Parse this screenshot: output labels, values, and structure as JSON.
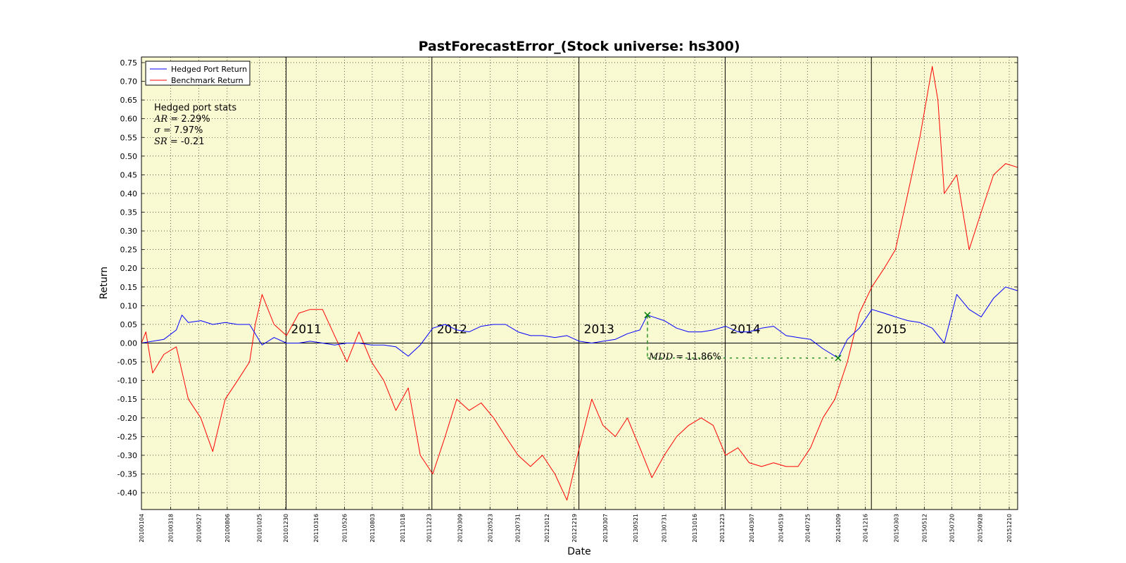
{
  "chart_data": {
    "type": "line",
    "title": "PastForecastError_(Stock universe: hs300)",
    "xlabel": "Date",
    "ylabel": "Return",
    "ylim": [
      -0.445,
      0.765
    ],
    "yticks": [
      "0.75",
      "0.70",
      "0.65",
      "0.60",
      "0.55",
      "0.50",
      "0.45",
      "0.40",
      "0.35",
      "0.30",
      "0.25",
      "0.20",
      "0.15",
      "0.10",
      "0.05",
      "0.00",
      "-0.05",
      "-0.10",
      "-0.15",
      "-0.20",
      "-0.25",
      "-0.30",
      "-0.35",
      "-0.40"
    ],
    "xlim": [
      "20100104",
      "20151231"
    ],
    "xticks": [
      "20100104",
      "20100318",
      "20100527",
      "20100806",
      "20101025",
      "20101230",
      "20110316",
      "20110526",
      "20110803",
      "20111018",
      "20111223",
      "20120309",
      "20120523",
      "20120731",
      "20121012",
      "20121219",
      "20130307",
      "20130521",
      "20130731",
      "20131016",
      "20131223",
      "20140307",
      "20140519",
      "20140725",
      "20141009",
      "20141216",
      "20150303",
      "20150512",
      "20150720",
      "20150928",
      "20151210"
    ],
    "year_lines": [
      {
        "date": "20101231",
        "label": "2011"
      },
      {
        "date": "20111230",
        "label": "2012"
      },
      {
        "date": "20121231",
        "label": "2013"
      },
      {
        "date": "20131231",
        "label": "2014"
      },
      {
        "date": "20141231",
        "label": "2015"
      }
    ],
    "grid": true,
    "legend_position": "top-left",
    "background": "#fafad2",
    "series": [
      {
        "name": "Hedged Port Return",
        "color": "#0000ff",
        "points": [
          [
            "20100104",
            0.0
          ],
          [
            "20100201",
            0.005
          ],
          [
            "20100301",
            0.01
          ],
          [
            "20100401",
            0.035
          ],
          [
            "20100415",
            0.075
          ],
          [
            "20100501",
            0.055
          ],
          [
            "20100601",
            0.06
          ],
          [
            "20100701",
            0.05
          ],
          [
            "20100801",
            0.055
          ],
          [
            "20100901",
            0.05
          ],
          [
            "20101001",
            0.05
          ],
          [
            "20101101",
            -0.005
          ],
          [
            "20101201",
            0.015
          ],
          [
            "20110101",
            0.0
          ],
          [
            "20110201",
            0.0
          ],
          [
            "20110301",
            0.005
          ],
          [
            "20110401",
            0.0
          ],
          [
            "20110501",
            -0.005
          ],
          [
            "20110601",
            0.0
          ],
          [
            "20110701",
            0.0
          ],
          [
            "20110801",
            -0.005
          ],
          [
            "20110901",
            -0.005
          ],
          [
            "20111001",
            -0.01
          ],
          [
            "20111101",
            -0.035
          ],
          [
            "20111201",
            -0.005
          ],
          [
            "20120101",
            0.04
          ],
          [
            "20120201",
            0.05
          ],
          [
            "20120301",
            0.035
          ],
          [
            "20120401",
            0.03
          ],
          [
            "20120501",
            0.045
          ],
          [
            "20120601",
            0.05
          ],
          [
            "20120701",
            0.05
          ],
          [
            "20120801",
            0.03
          ],
          [
            "20120901",
            0.02
          ],
          [
            "20121001",
            0.02
          ],
          [
            "20121101",
            0.015
          ],
          [
            "20121201",
            0.02
          ],
          [
            "20130101",
            0.005
          ],
          [
            "20130201",
            0.0
          ],
          [
            "20130301",
            0.005
          ],
          [
            "20130401",
            0.01
          ],
          [
            "20130501",
            0.025
          ],
          [
            "20130601",
            0.035
          ],
          [
            "20130620",
            0.075
          ],
          [
            "20130801",
            0.06
          ],
          [
            "20130901",
            0.04
          ],
          [
            "20131001",
            0.03
          ],
          [
            "20131101",
            0.03
          ],
          [
            "20131201",
            0.035
          ],
          [
            "20140101",
            0.045
          ],
          [
            "20140201",
            0.03
          ],
          [
            "20140301",
            0.03
          ],
          [
            "20140401",
            0.04
          ],
          [
            "20140501",
            0.045
          ],
          [
            "20140601",
            0.02
          ],
          [
            "20140701",
            0.015
          ],
          [
            "20140801",
            0.01
          ],
          [
            "20140901",
            -0.015
          ],
          [
            "20141009",
            -0.04
          ],
          [
            "20141101",
            0.01
          ],
          [
            "20141201",
            0.04
          ],
          [
            "20150101",
            0.09
          ],
          [
            "20150201",
            0.08
          ],
          [
            "20150301",
            0.07
          ],
          [
            "20150401",
            0.06
          ],
          [
            "20150501",
            0.055
          ],
          [
            "20150601",
            0.04
          ],
          [
            "20150701",
            0.0
          ],
          [
            "20150801",
            0.13
          ],
          [
            "20150901",
            0.09
          ],
          [
            "20151001",
            0.07
          ],
          [
            "20151101",
            0.12
          ],
          [
            "20151201",
            0.15
          ],
          [
            "20151231",
            0.14
          ]
        ]
      },
      {
        "name": "Benchmark Return",
        "color": "#ff0000",
        "points": [
          [
            "20100104",
            0.0
          ],
          [
            "20100115",
            0.03
          ],
          [
            "20100201",
            -0.08
          ],
          [
            "20100301",
            -0.03
          ],
          [
            "20100401",
            -0.01
          ],
          [
            "20100501",
            -0.15
          ],
          [
            "20100601",
            -0.2
          ],
          [
            "20100701",
            -0.29
          ],
          [
            "20100801",
            -0.15
          ],
          [
            "20100901",
            -0.1
          ],
          [
            "20101001",
            -0.05
          ],
          [
            "20101015",
            0.05
          ],
          [
            "20101101",
            0.13
          ],
          [
            "20101201",
            0.05
          ],
          [
            "20110101",
            0.02
          ],
          [
            "20110201",
            0.08
          ],
          [
            "20110301",
            0.09
          ],
          [
            "20110401",
            0.09
          ],
          [
            "20110501",
            0.02
          ],
          [
            "20110601",
            -0.05
          ],
          [
            "20110701",
            0.03
          ],
          [
            "20110801",
            -0.05
          ],
          [
            "20110901",
            -0.1
          ],
          [
            "20111001",
            -0.18
          ],
          [
            "20111101",
            -0.12
          ],
          [
            "20111201",
            -0.3
          ],
          [
            "20120101",
            -0.35
          ],
          [
            "20120201",
            -0.25
          ],
          [
            "20120301",
            -0.15
          ],
          [
            "20120401",
            -0.18
          ],
          [
            "20120501",
            -0.16
          ],
          [
            "20120601",
            -0.2
          ],
          [
            "20120701",
            -0.25
          ],
          [
            "20120801",
            -0.3
          ],
          [
            "20120901",
            -0.33
          ],
          [
            "20121001",
            -0.3
          ],
          [
            "20121101",
            -0.35
          ],
          [
            "20121201",
            -0.42
          ],
          [
            "20130101",
            -0.28
          ],
          [
            "20130201",
            -0.15
          ],
          [
            "20130301",
            -0.22
          ],
          [
            "20130401",
            -0.25
          ],
          [
            "20130501",
            -0.2
          ],
          [
            "20130601",
            -0.28
          ],
          [
            "20130701",
            -0.36
          ],
          [
            "20130801",
            -0.3
          ],
          [
            "20130901",
            -0.25
          ],
          [
            "20131001",
            -0.22
          ],
          [
            "20131101",
            -0.2
          ],
          [
            "20131201",
            -0.22
          ],
          [
            "20140101",
            -0.3
          ],
          [
            "20140201",
            -0.28
          ],
          [
            "20140301",
            -0.32
          ],
          [
            "20140401",
            -0.33
          ],
          [
            "20140501",
            -0.32
          ],
          [
            "20140601",
            -0.33
          ],
          [
            "20140701",
            -0.33
          ],
          [
            "20140801",
            -0.28
          ],
          [
            "20140901",
            -0.2
          ],
          [
            "20141001",
            -0.15
          ],
          [
            "20141101",
            -0.05
          ],
          [
            "20141201",
            0.08
          ],
          [
            "20150101",
            0.15
          ],
          [
            "20150201",
            0.2
          ],
          [
            "20150301",
            0.25
          ],
          [
            "20150401",
            0.4
          ],
          [
            "20150501",
            0.55
          ],
          [
            "20150601",
            0.74
          ],
          [
            "20150615",
            0.65
          ],
          [
            "20150701",
            0.4
          ],
          [
            "20150801",
            0.45
          ],
          [
            "20150901",
            0.25
          ],
          [
            "20151001",
            0.35
          ],
          [
            "20151101",
            0.45
          ],
          [
            "20151201",
            0.48
          ],
          [
            "20151231",
            0.47
          ]
        ]
      }
    ],
    "annotations": {
      "stats_title": "Hedged port stats",
      "stats": [
        {
          "symbol": "AR =",
          "value": " 2.29%"
        },
        {
          "symbol": "σ =",
          "value": " 7.97%"
        },
        {
          "symbol": "SR =",
          "value": " -0.21"
        }
      ],
      "mdd": {
        "symbol": "MDD =",
        "value": " 11.86%",
        "peak": [
          "20130620",
          0.075
        ],
        "trough": [
          "20141009",
          -0.04
        ]
      }
    }
  }
}
